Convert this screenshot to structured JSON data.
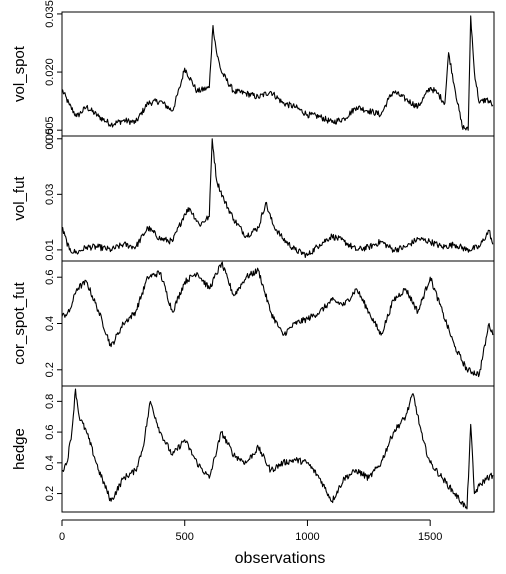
{
  "chart_data": {
    "type": "line",
    "layout": "stacked-panels",
    "xlabel": "observations",
    "x_ticks": [
      0,
      500,
      1000,
      1500
    ],
    "xlim": [
      0,
      1760
    ],
    "panels": [
      {
        "ylabel": "vol_spot",
        "y_ticks": [
          0.005,
          0.02,
          0.035
        ],
        "y_tick_labels": [
          "0.005",
          "0.020",
          "0.035"
        ],
        "ylim": [
          0.0035,
          0.0355
        ],
        "series": [
          {
            "x": [
              0,
              30,
              60,
              100,
              150,
              200,
              250,
              300,
              350,
              400,
              450,
              480,
              500,
              550,
              600,
              615,
              630,
              650,
              700,
              750,
              800,
              850,
              900,
              950,
              1000,
              1050,
              1100,
              1150,
              1200,
              1250,
              1300,
              1330,
              1350,
              1400,
              1450,
              1500,
              1530,
              1560,
              1575,
              1600,
              1630,
              1655,
              1665,
              1680,
              1700,
              1730,
              1755
            ],
            "y": [
              0.0155,
              0.0115,
              0.0085,
              0.011,
              0.0085,
              0.0065,
              0.0075,
              0.007,
              0.012,
              0.0125,
              0.01,
              0.016,
              0.021,
              0.015,
              0.016,
              0.032,
              0.025,
              0.02,
              0.015,
              0.0145,
              0.0135,
              0.015,
              0.012,
              0.011,
              0.009,
              0.0085,
              0.007,
              0.008,
              0.011,
              0.01,
              0.009,
              0.013,
              0.015,
              0.013,
              0.011,
              0.016,
              0.0145,
              0.012,
              0.025,
              0.016,
              0.006,
              0.005,
              0.0345,
              0.02,
              0.012,
              0.013,
              0.0115
            ]
          }
        ]
      },
      {
        "ylabel": "vol_fut",
        "y_ticks": [
          0.01,
          0.03,
          0.05
        ],
        "y_tick_labels": [
          "0.01",
          "0.03",
          "0.05"
        ],
        "ylim": [
          0.006,
          0.051
        ],
        "series": [
          {
            "x": [
              0,
              30,
              60,
              100,
              150,
              200,
              250,
              300,
              350,
              400,
              450,
              500,
              520,
              560,
              600,
              612,
              630,
              660,
              700,
              750,
              800,
              830,
              860,
              900,
              950,
              1000,
              1050,
              1100,
              1150,
              1200,
              1250,
              1300,
              1350,
              1400,
              1450,
              1500,
              1550,
              1600,
              1650,
              1700,
              1740,
              1755
            ],
            "y": [
              0.018,
              0.01,
              0.009,
              0.011,
              0.011,
              0.01,
              0.012,
              0.011,
              0.018,
              0.014,
              0.013,
              0.023,
              0.025,
              0.019,
              0.022,
              0.05,
              0.035,
              0.028,
              0.021,
              0.015,
              0.018,
              0.027,
              0.019,
              0.014,
              0.01,
              0.008,
              0.012,
              0.015,
              0.013,
              0.01,
              0.011,
              0.013,
              0.01,
              0.011,
              0.014,
              0.013,
              0.011,
              0.012,
              0.01,
              0.011,
              0.017,
              0.012
            ]
          }
        ]
      },
      {
        "ylabel": "cor_spot_fut",
        "y_ticks": [
          0.2,
          0.4,
          0.6
        ],
        "y_tick_labels": [
          "0.2",
          "0.4",
          "0.6"
        ],
        "ylim": [
          0.13,
          0.67
        ],
        "series": [
          {
            "x": [
              0,
              30,
              60,
              100,
              150,
              200,
              250,
              300,
              350,
              400,
              450,
              500,
              550,
              600,
              650,
              700,
              750,
              800,
              850,
              900,
              950,
              1000,
              1050,
              1100,
              1150,
              1200,
              1250,
              1300,
              1350,
              1400,
              1450,
              1500,
              1550,
              1600,
              1650,
              1700,
              1740,
              1755
            ],
            "y": [
              0.43,
              0.45,
              0.55,
              0.58,
              0.45,
              0.3,
              0.4,
              0.45,
              0.6,
              0.62,
              0.45,
              0.58,
              0.62,
              0.55,
              0.66,
              0.52,
              0.6,
              0.63,
              0.45,
              0.35,
              0.4,
              0.42,
              0.45,
              0.5,
              0.48,
              0.55,
              0.45,
              0.35,
              0.5,
              0.55,
              0.45,
              0.6,
              0.45,
              0.3,
              0.2,
              0.18,
              0.4,
              0.35
            ]
          }
        ]
      },
      {
        "ylabel": "hedge",
        "y_ticks": [
          0.2,
          0.4,
          0.6,
          0.8
        ],
        "y_tick_labels": [
          "0.2",
          "0.4",
          "0.6",
          "0.8"
        ],
        "ylim": [
          0.08,
          0.9
        ],
        "series": [
          {
            "x": [
              0,
              20,
              40,
              55,
              70,
              100,
              150,
              200,
              250,
              300,
              330,
              360,
              400,
              450,
              500,
              550,
              600,
              650,
              700,
              750,
              800,
              850,
              900,
              950,
              1000,
              1050,
              1100,
              1150,
              1200,
              1250,
              1300,
              1350,
              1400,
              1430,
              1470,
              1500,
              1550,
              1600,
              1650,
              1665,
              1680,
              1700,
              1730,
              1755
            ],
            "y": [
              0.35,
              0.4,
              0.6,
              0.88,
              0.7,
              0.6,
              0.35,
              0.15,
              0.3,
              0.35,
              0.5,
              0.8,
              0.6,
              0.45,
              0.55,
              0.4,
              0.3,
              0.6,
              0.45,
              0.4,
              0.5,
              0.35,
              0.4,
              0.42,
              0.4,
              0.3,
              0.15,
              0.3,
              0.35,
              0.3,
              0.4,
              0.6,
              0.7,
              0.85,
              0.55,
              0.4,
              0.3,
              0.2,
              0.1,
              0.65,
              0.2,
              0.25,
              0.3,
              0.32
            ]
          }
        ]
      }
    ]
  }
}
